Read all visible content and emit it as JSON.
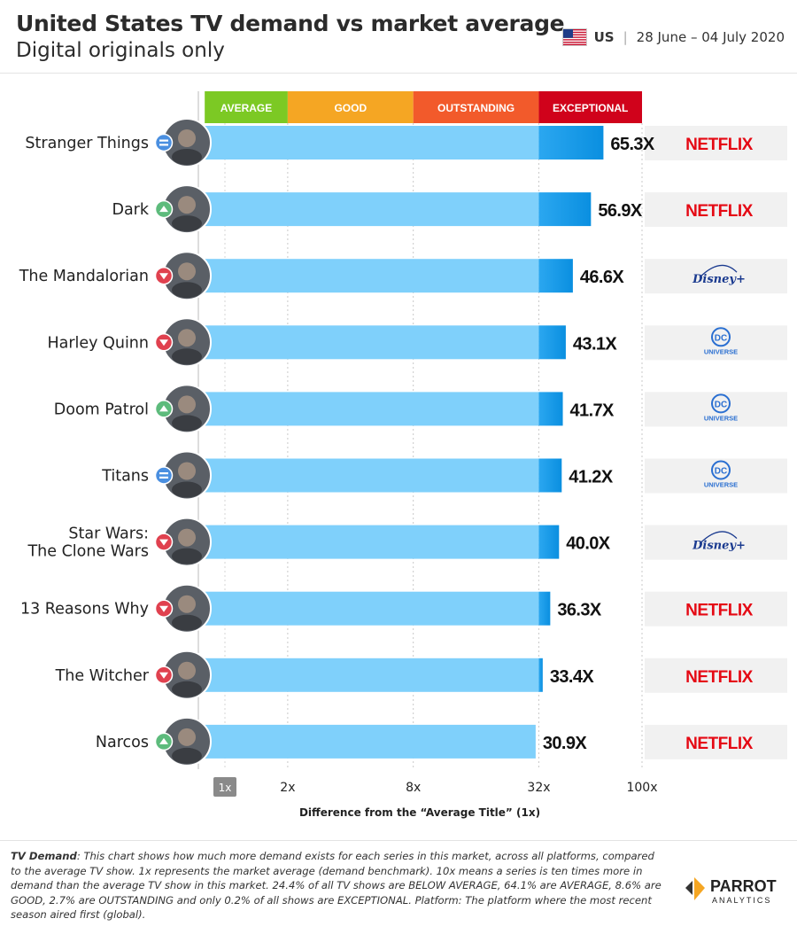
{
  "header": {
    "title": "United States TV demand vs market average",
    "subtitle": "Digital originals only",
    "country": "US",
    "date_range": "28 June – 04 July 2020"
  },
  "chart_data": {
    "type": "bar",
    "orientation": "horizontal",
    "x_scale": "log",
    "xlabel": "Difference from the “Average Title” (1x)",
    "x_ticks": [
      {
        "value": 1,
        "label": "1x"
      },
      {
        "value": 2,
        "label": "2x"
      },
      {
        "value": 8,
        "label": "8x"
      },
      {
        "value": 32,
        "label": "32x"
      },
      {
        "value": 100,
        "label": "100x"
      }
    ],
    "xlim": [
      1,
      100
    ],
    "bands": [
      {
        "label": "AVERAGE",
        "from": 0.8,
        "to": 2,
        "color": "#7cc924"
      },
      {
        "label": "GOOD",
        "from": 2,
        "to": 8,
        "color": "#f5a623"
      },
      {
        "label": "OUTSTANDING",
        "from": 8,
        "to": 32,
        "color": "#f25a2b"
      },
      {
        "label": "EXCEPTIONAL",
        "from": 32,
        "to": 100,
        "color": "#d0021b"
      }
    ],
    "categories": [
      "Stranger Things",
      "Dark",
      "The Mandalorian",
      "Harley Quinn",
      "Doom Patrol",
      "Titans",
      "Star Wars: The Clone Wars",
      "13 Reasons Why",
      "The Witcher",
      "Narcos"
    ],
    "values": [
      65.3,
      56.9,
      46.6,
      43.1,
      41.7,
      41.2,
      40.0,
      36.3,
      33.4,
      30.9
    ],
    "value_labels": [
      "65.3X",
      "56.9X",
      "46.6X",
      "43.1X",
      "41.7X",
      "41.2X",
      "40.0X",
      "36.3X",
      "33.4X",
      "30.9X"
    ],
    "trend": [
      "same",
      "up",
      "down",
      "down",
      "up",
      "same",
      "down",
      "down",
      "down",
      "up"
    ],
    "platform": [
      "NETFLIX",
      "NETFLIX",
      "Disney+",
      "DC UNIVERSE",
      "DC UNIVERSE",
      "DC UNIVERSE",
      "Disney+",
      "NETFLIX",
      "NETFLIX",
      "NETFLIX"
    ],
    "colors": {
      "bar_light": "#7fd0fb",
      "bar_dark": "#0a8fe0",
      "platform_bg": "#f1f1f1",
      "netflix": "#e50914",
      "disney": "#1a3a8f",
      "dc": "#2a6fd1",
      "up": "#5dbb7c",
      "down": "#e0414f",
      "same": "#4a8fe0"
    }
  },
  "footer": {
    "lead": "TV Demand",
    "text": ": This chart shows how much more demand exists for each series in this market, across all platforms, compared to the average TV show. 1x represents the market average (demand benchmark). 10x means a series is ten times more in demand than the average TV show in this market. 24.4% of all TV shows are BELOW AVERAGE, 64.1% are AVERAGE, 8.6% are GOOD, 2.7% are OUTSTANDING and only 0.2% of all shows are EXCEPTIONAL. Platform: The platform where the most recent season aired first (global).",
    "logo_line1": "PARROT",
    "logo_line2": "ANALYTICS"
  }
}
